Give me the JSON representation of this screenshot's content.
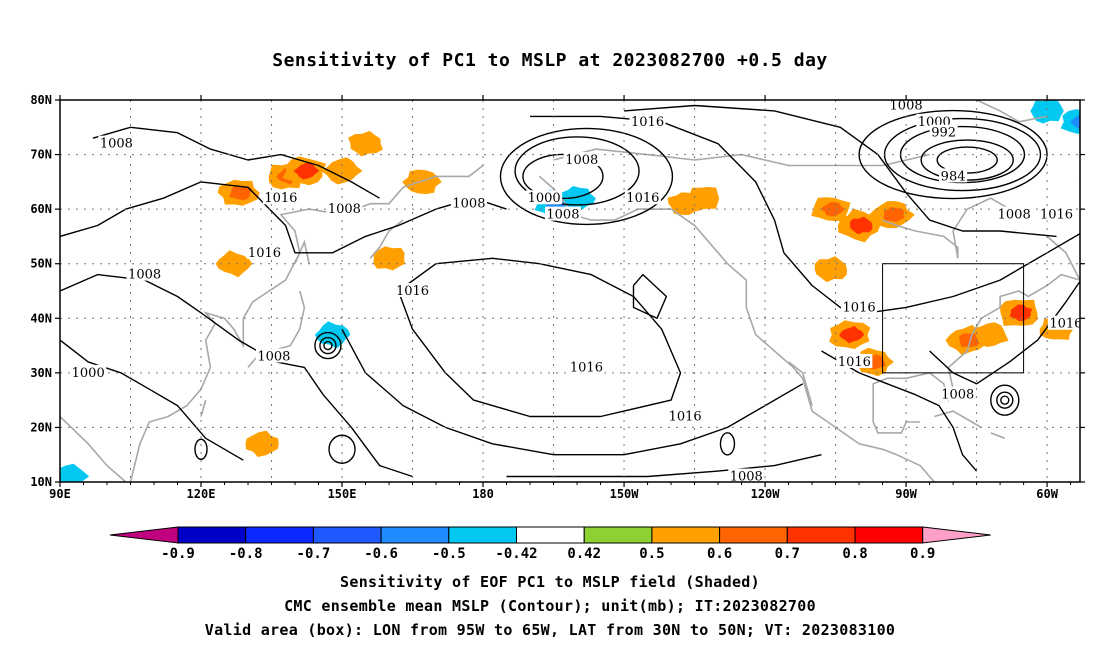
{
  "title": "Sensitivity of PC1 to MSLP at 2023082700 +0.5 day",
  "map": {
    "lon_labels": [
      "90E",
      "120E",
      "150E",
      "180",
      "150W",
      "120W",
      "90W",
      "60W"
    ],
    "lat_labels": [
      "80N",
      "70N",
      "60N",
      "50N",
      "40N",
      "30N",
      "20N",
      "10N"
    ],
    "contour_labels": [
      {
        "text": "1016",
        "lon": 137,
        "lat": 62
      },
      {
        "text": "1008",
        "lon": 102,
        "lat": 72
      },
      {
        "text": "1008",
        "lon": 150.5,
        "lat": 60
      },
      {
        "text": "1016",
        "lon": 133.5,
        "lat": 52
      },
      {
        "text": "1008",
        "lon": 108,
        "lat": 48
      },
      {
        "text": "1008",
        "lon": 135.5,
        "lat": 33
      },
      {
        "text": "1000",
        "lon": 96,
        "lat": 30
      },
      {
        "text": "1008",
        "lon": 177,
        "lat": 61
      },
      {
        "text": "1016",
        "lon": 165,
        "lat": 45
      },
      {
        "text": "1016",
        "lon": -145,
        "lat": 76
      },
      {
        "text": "1008",
        "lon": -159,
        "lat": 69
      },
      {
        "text": "1000",
        "lon": -167,
        "lat": 62
      },
      {
        "text": "1008",
        "lon": -163,
        "lat": 59
      },
      {
        "text": "1016",
        "lon": -146,
        "lat": 62
      },
      {
        "text": "1016",
        "lon": -158,
        "lat": 31
      },
      {
        "text": "1016",
        "lon": -137,
        "lat": 22
      },
      {
        "text": "1008",
        "lon": -124,
        "lat": 11
      },
      {
        "text": "1008",
        "lon": -90,
        "lat": 79
      },
      {
        "text": "1000",
        "lon": -84,
        "lat": 76
      },
      {
        "text": "992",
        "lon": -82,
        "lat": 74
      },
      {
        "text": "984",
        "lon": -80,
        "lat": 66
      },
      {
        "text": "1008",
        "lon": -67,
        "lat": 59
      },
      {
        "text": "1016",
        "lon": -58,
        "lat": 59
      },
      {
        "text": "1016",
        "lon": -100,
        "lat": 42
      },
      {
        "text": "1016",
        "lon": -101,
        "lat": 32
      },
      {
        "text": "1008",
        "lon": -79,
        "lat": 26
      },
      {
        "text": "1016",
        "lon": -56,
        "lat": 39
      }
    ],
    "valid_box": {
      "lon_min": -95,
      "lon_max": -65,
      "lat_min": 30,
      "lat_max": 50
    },
    "positive_patches": [
      {
        "lon": 128,
        "lat": 63,
        "value": 0.65
      },
      {
        "lon": 138,
        "lat": 66,
        "value": 0.6
      },
      {
        "lon": 142,
        "lat": 67,
        "value": 0.7
      },
      {
        "lon": 127,
        "lat": 50,
        "value": 0.5
      },
      {
        "lon": 150,
        "lat": 67,
        "value": 0.55
      },
      {
        "lon": 155,
        "lat": 72,
        "value": 0.5
      },
      {
        "lon": 160,
        "lat": 51,
        "value": 0.5
      },
      {
        "lon": 167,
        "lat": 65,
        "value": 0.55
      },
      {
        "lon": 133,
        "lat": 17,
        "value": 0.5
      },
      {
        "lon": -137,
        "lat": 61,
        "value": 0.5
      },
      {
        "lon": -133,
        "lat": 62,
        "value": 0.5
      },
      {
        "lon": -106,
        "lat": 60,
        "value": 0.6
      },
      {
        "lon": -100,
        "lat": 57,
        "value": 0.75
      },
      {
        "lon": -93,
        "lat": 59,
        "value": 0.65
      },
      {
        "lon": -106,
        "lat": 49,
        "value": 0.5
      },
      {
        "lon": -102,
        "lat": 37,
        "value": 0.7
      },
      {
        "lon": -97,
        "lat": 32,
        "value": 0.6
      },
      {
        "lon": -77,
        "lat": 36,
        "value": 0.65
      },
      {
        "lon": -72,
        "lat": 37,
        "value": 0.5
      },
      {
        "lon": -66,
        "lat": 41,
        "value": 0.7
      },
      {
        "lon": -58,
        "lat": 38,
        "value": 0.5
      }
    ],
    "negative_patches": [
      {
        "lon": -165,
        "lat": 61,
        "value": -0.6
      },
      {
        "lon": -160,
        "lat": 62,
        "value": -0.5
      },
      {
        "lon": -60,
        "lat": 78,
        "value": -0.5
      },
      {
        "lon": -53,
        "lat": 76,
        "value": -0.6
      },
      {
        "lon": 148,
        "lat": 37,
        "value": -0.5
      },
      {
        "lon": 92,
        "lat": 11,
        "value": -0.5
      }
    ],
    "low_centers": [
      {
        "lon": 147,
        "lat": 35
      },
      {
        "lon": -76,
        "lat": 69
      },
      {
        "lon": -69,
        "lat": 25
      }
    ]
  },
  "colorbar": {
    "labels": [
      "-0.9",
      "-0.8",
      "-0.7",
      "-0.6",
      "-0.5",
      "-0.42",
      "0.42",
      "0.5",
      "0.6",
      "0.7",
      "0.8",
      "0.9"
    ],
    "colors": [
      "#c0007f",
      "#0000c8",
      "#0a28ff",
      "#1e5aff",
      "#1e8cff",
      "#00c8f0",
      "#ffffff",
      "#8cd232",
      "#ffa000",
      "#ff6400",
      "#ff3200",
      "#ff0000",
      "#ffa0c8"
    ]
  },
  "footer": {
    "line1": "Sensitivity of EOF PC1 to MSLP field (Shaded)",
    "line2": "CMC ensemble mean MSLP (Contour); unit(mb); IT:2023082700",
    "line3": "Valid area (box): LON from 95W to 65W, LAT from 30N to 50N; VT: 2023083100"
  }
}
